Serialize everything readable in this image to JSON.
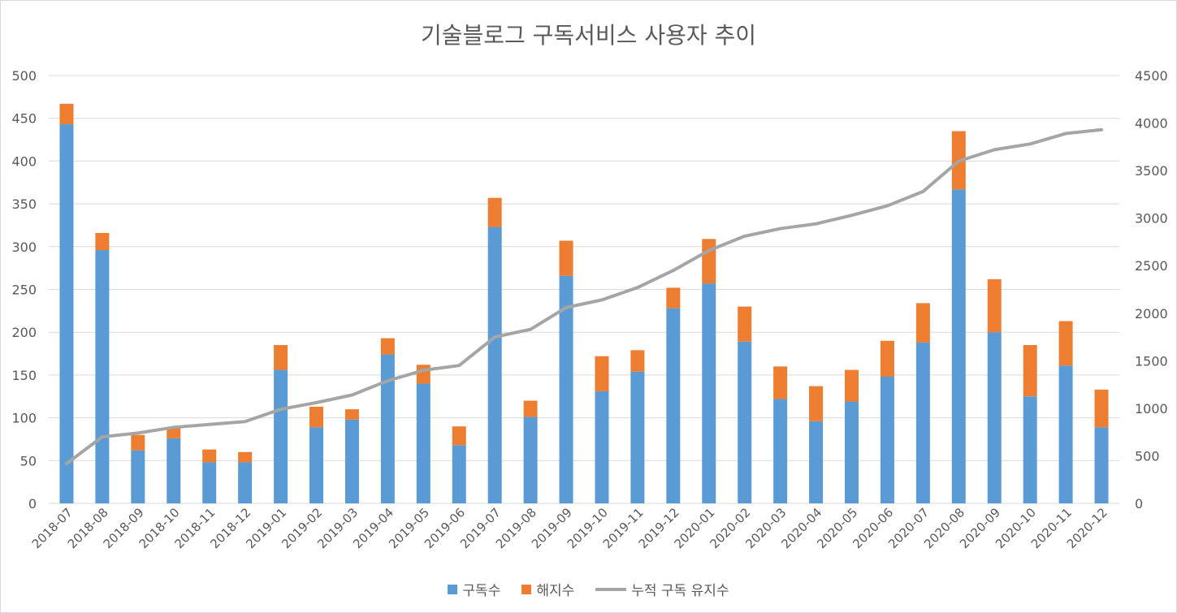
{
  "chart_data": {
    "type": "bar",
    "stacked": true,
    "title": "기술블로그 구독서비스 사용자 추이",
    "categories": [
      "2018-07",
      "2018-08",
      "2018-09",
      "2018-10",
      "2018-11",
      "2018-12",
      "2019-01",
      "2019-02",
      "2019-03",
      "2019-04",
      "2019-05",
      "2019-06",
      "2019-07",
      "2019-08",
      "2019-09",
      "2019-10",
      "2019-11",
      "2019-12",
      "2020-01",
      "2020-02",
      "2020-03",
      "2020-04",
      "2020-05",
      "2020-06",
      "2020-07",
      "2020-08",
      "2020-09",
      "2020-10",
      "2020-11",
      "2020-12"
    ],
    "series": [
      {
        "name": "구독수",
        "axis": "left",
        "type": "bar",
        "color": "#5b9bd5",
        "values": [
          443,
          296,
          62,
          76,
          48,
          48,
          156,
          89,
          98,
          174,
          140,
          68,
          323,
          101,
          266,
          131,
          154,
          228,
          257,
          189,
          122,
          96,
          119,
          148,
          188,
          367,
          200,
          125,
          161,
          89
        ]
      },
      {
        "name": "해지수",
        "axis": "left",
        "type": "bar",
        "color": "#ed7d31",
        "values": [
          24,
          20,
          18,
          13,
          15,
          12,
          29,
          24,
          12,
          19,
          22,
          22,
          34,
          19,
          41,
          41,
          25,
          24,
          52,
          41,
          38,
          41,
          37,
          42,
          46,
          68,
          62,
          60,
          52,
          44
        ]
      },
      {
        "name": "누적 구독 유지수",
        "axis": "right",
        "type": "line",
        "color": "#a5a5a5",
        "values": [
          419,
          700,
          740,
          800,
          830,
          860,
          990,
          1060,
          1140,
          1290,
          1400,
          1450,
          1750,
          1830,
          2060,
          2140,
          2270,
          2450,
          2660,
          2810,
          2890,
          2940,
          3030,
          3130,
          3280,
          3600,
          3720,
          3780,
          3890,
          3930
        ]
      }
    ],
    "left_axis": {
      "min": 0,
      "max": 500,
      "step": 50
    },
    "right_axis": {
      "min": 0,
      "max": 4500,
      "step": 500
    },
    "grid": true,
    "legend_position": "bottom"
  }
}
